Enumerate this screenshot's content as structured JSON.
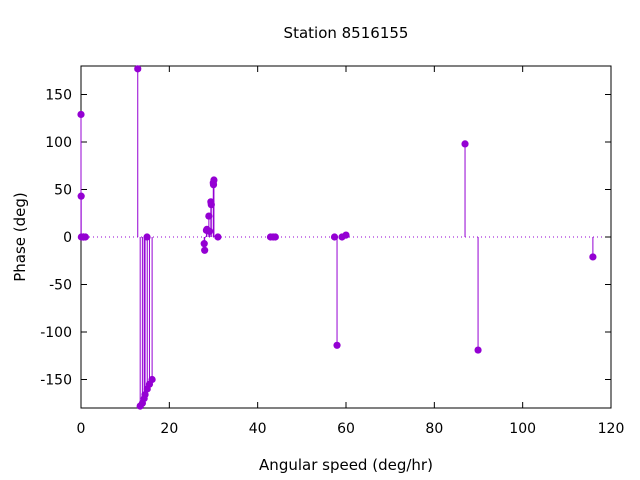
{
  "chart_data": {
    "type": "stem",
    "title": "Station 8516155",
    "xlabel": "Angular speed (deg/hr)",
    "ylabel": "Phase (deg)",
    "xlim": [
      0,
      120
    ],
    "ylim": [
      -180,
      180
    ],
    "xticks": [
      0,
      20,
      40,
      60,
      80,
      100,
      120
    ],
    "yticks": [
      -150,
      -100,
      -50,
      0,
      50,
      100,
      150
    ],
    "zero_line": true,
    "color": "#9400d3",
    "points": [
      {
        "x": 0.0,
        "y": 129
      },
      {
        "x": 0.04,
        "y": 43
      },
      {
        "x": 0.08,
        "y": 0
      },
      {
        "x": 0.5,
        "y": 0
      },
      {
        "x": 0.54,
        "y": 0
      },
      {
        "x": 0.58,
        "y": 0
      },
      {
        "x": 1.0,
        "y": 0
      },
      {
        "x": 12.85,
        "y": 177
      },
      {
        "x": 13.4,
        "y": -178
      },
      {
        "x": 13.9,
        "y": -175
      },
      {
        "x": 14.3,
        "y": -170
      },
      {
        "x": 14.5,
        "y": -166
      },
      {
        "x": 14.95,
        "y": 0
      },
      {
        "x": 15.0,
        "y": -160
      },
      {
        "x": 15.5,
        "y": -155
      },
      {
        "x": 16.1,
        "y": -150
      },
      {
        "x": 27.9,
        "y": -7
      },
      {
        "x": 28.0,
        "y": -14
      },
      {
        "x": 28.4,
        "y": 7
      },
      {
        "x": 28.5,
        "y": 8
      },
      {
        "x": 28.95,
        "y": 22
      },
      {
        "x": 29.1,
        "y": 6
      },
      {
        "x": 29.4,
        "y": 37
      },
      {
        "x": 29.5,
        "y": 34
      },
      {
        "x": 29.95,
        "y": 57
      },
      {
        "x": 30.0,
        "y": 55
      },
      {
        "x": 30.1,
        "y": 60
      },
      {
        "x": 31.0,
        "y": 0
      },
      {
        "x": 42.9,
        "y": 0
      },
      {
        "x": 43.5,
        "y": 0
      },
      {
        "x": 44.0,
        "y": 0
      },
      {
        "x": 57.4,
        "y": 0
      },
      {
        "x": 57.97,
        "y": -114
      },
      {
        "x": 59.1,
        "y": 0
      },
      {
        "x": 60.0,
        "y": 2
      },
      {
        "x": 86.95,
        "y": 98
      },
      {
        "x": 89.9,
        "y": -119
      },
      {
        "x": 115.9,
        "y": -21
      }
    ]
  }
}
